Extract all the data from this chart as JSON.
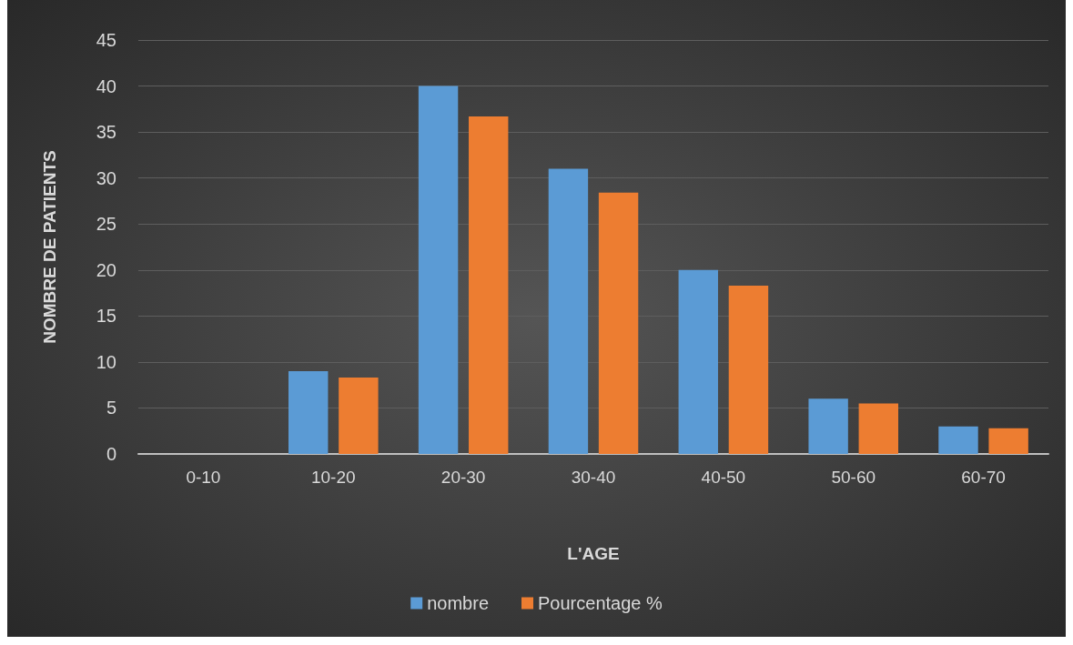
{
  "chart_data": {
    "type": "bar",
    "xlabel": "L'AGE",
    "ylabel": "NOMBRE DE PATIENTS",
    "categories": [
      "0-10",
      "10-20",
      "20-30",
      "30-40",
      "40-50",
      "50-60",
      "60-70"
    ],
    "series": [
      {
        "name": "nombre",
        "color": "#5b9bd5",
        "values": [
          0,
          9,
          40,
          31,
          20,
          6,
          3
        ]
      },
      {
        "name": "Pourcentage %",
        "color": "#ed7d31",
        "values": [
          0,
          8.3,
          36.7,
          28.4,
          18.3,
          5.5,
          2.8
        ]
      }
    ],
    "ylim": [
      0,
      45
    ],
    "yticks": [
      0,
      5,
      10,
      15,
      20,
      25,
      30,
      35,
      40,
      45
    ],
    "grid": "y",
    "legend": "bottom"
  }
}
